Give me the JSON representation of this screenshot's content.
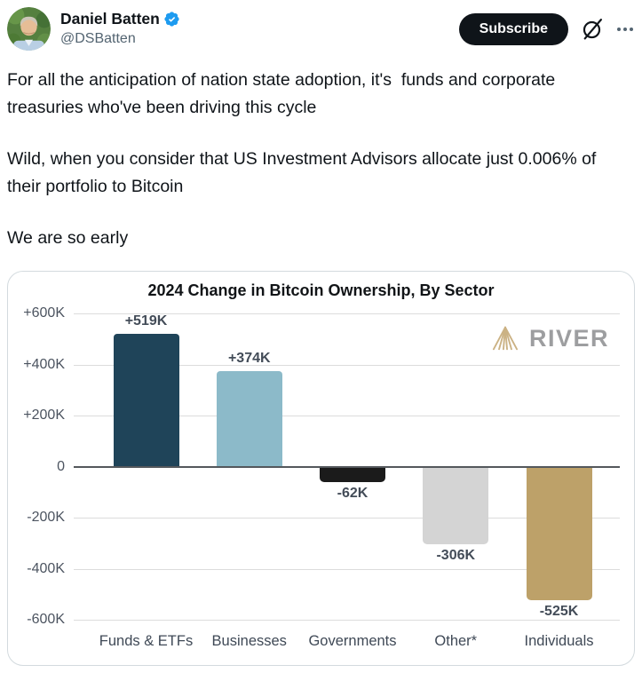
{
  "header": {
    "display_name": "Daniel Batten",
    "handle": "@DSBatten",
    "subscribe_label": "Subscribe",
    "verified": true
  },
  "tweet": {
    "paragraphs": [
      "For all the anticipation of nation state adoption, it's  funds and corporate treasuries who've been driving this cycle",
      "Wild, when you consider that US Investment Advisors allocate just 0.006% of their portfolio to Bitcoin",
      "We are so early"
    ]
  },
  "chart_data": {
    "type": "bar",
    "title": "2024 Change in Bitcoin Ownership, By Sector",
    "categories": [
      "Funds & ETFs",
      "Businesses",
      "Governments",
      "Other*",
      "Individuals"
    ],
    "values": [
      519000,
      374000,
      -62000,
      -306000,
      -525000
    ],
    "value_labels": [
      "+519K",
      "+374K",
      "-62K",
      "-306K",
      "-525K"
    ],
    "bar_colors": [
      "#1f4459",
      "#8cbac9",
      "#1b1b1b",
      "#d4d4d4",
      "#bda169"
    ],
    "y_ticks": [
      600000,
      400000,
      200000,
      0,
      -200000,
      -400000,
      -600000
    ],
    "y_tick_labels": [
      "+600K",
      "+400K",
      "+200K",
      "0",
      "-200K",
      "-400K",
      "-600K"
    ],
    "ylim": [
      -600000,
      600000
    ],
    "grid": true,
    "legend": "none",
    "watermark": "RIVER"
  },
  "colors": {
    "accent_blue": "#1d9bf0",
    "subscribe_bg": "#0f1419",
    "handle_gray": "#536471",
    "card_border": "#d3dade",
    "gridline": "#dcdcdc",
    "zero_line": "#54585c",
    "river_gold": "#c9ae7e",
    "river_gray": "#98999b"
  }
}
